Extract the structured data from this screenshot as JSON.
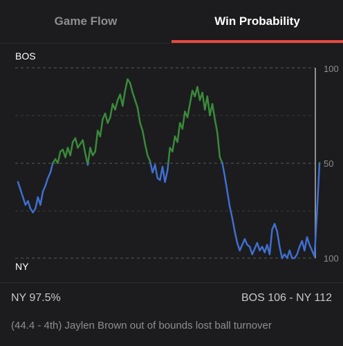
{
  "tabs": [
    {
      "label": "Game Flow",
      "active": false
    },
    {
      "label": "Win Probability",
      "active": true
    }
  ],
  "colors": {
    "background": "#1c1c1e",
    "tab_indicator": "#e8493f",
    "bos_line": "#3a8a3a",
    "ny_line": "#3f6fcf",
    "grid": "#5a5a5e",
    "axis_text": "#8e8e93"
  },
  "info": {
    "probability": "NY 97.5%",
    "score": "BOS 106  - NY 112"
  },
  "play_description": "(44.4 - 4th) Jaylen Brown out of bounds lost ball turnover",
  "chart_data": {
    "type": "line",
    "top_team": "BOS",
    "bottom_team": "NY",
    "y_tick_labels": [
      "100",
      "50",
      "100"
    ],
    "ylim": [
      -100,
      100
    ],
    "grid": true,
    "series": [
      {
        "values": [
          -20,
          -28,
          -36,
          -44,
          -40,
          -48,
          -52,
          -48,
          -36,
          -44,
          -30,
          -24,
          -16,
          -10,
          0,
          4,
          0,
          12,
          14,
          6,
          16,
          8,
          22,
          26,
          16,
          20,
          24,
          10,
          -2,
          16,
          8,
          12,
          34,
          28,
          46,
          52,
          42,
          48,
          62,
          56,
          66,
          72,
          60,
          76,
          88,
          84,
          74,
          66,
          58,
          42,
          34,
          20,
          8,
          2,
          -10,
          -2,
          -16,
          -18,
          -4,
          -20,
          -8,
          16,
          12,
          28,
          22,
          42,
          36,
          54,
          48,
          62,
          76,
          70,
          80,
          66,
          74,
          56,
          70,
          50,
          62,
          46,
          32,
          6,
          0,
          -14,
          -30,
          -46,
          -58,
          -72,
          -84,
          -92,
          -86,
          -80,
          -86,
          -88,
          -96,
          -90,
          -84,
          -92,
          -88,
          -94,
          -86,
          -96,
          -70,
          -64,
          -72,
          -88,
          -100,
          -96,
          -100,
          -92,
          -100,
          -100,
          -96,
          -88,
          -82,
          -92,
          -78,
          -86,
          -92,
          -98,
          -52,
          0
        ]
      }
    ]
  }
}
